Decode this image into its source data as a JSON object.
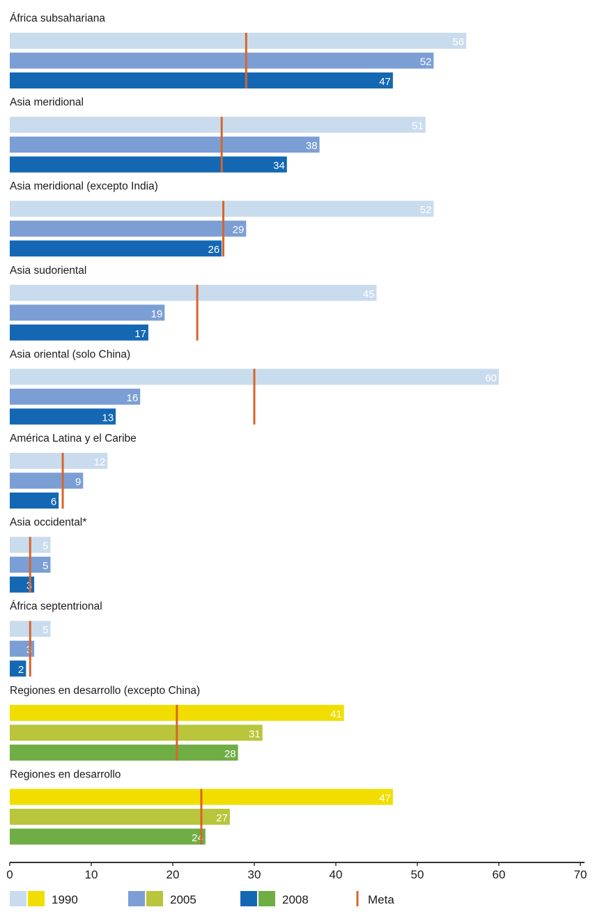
{
  "chart_data": {
    "type": "bar",
    "orientation": "horizontal",
    "title": "",
    "xlabel": "",
    "ylabel": "",
    "xlim": [
      0,
      70
    ],
    "xticks": [
      "0",
      "10",
      "20",
      "30",
      "40",
      "50",
      "60",
      "70"
    ],
    "grid": false,
    "legend_placement": "bottom",
    "series_years": [
      "1990",
      "2005",
      "2008"
    ],
    "target_label": "Meta",
    "groups": [
      {
        "label": "África subsahariana",
        "palette": "blue",
        "values": [
          56,
          52,
          47
        ],
        "target": 29
      },
      {
        "label": "Asia meridional",
        "palette": "blue",
        "values": [
          51,
          38,
          34
        ],
        "target": 26
      },
      {
        "label": "Asia meridional (excepto India)",
        "palette": "blue",
        "values": [
          52,
          29,
          26
        ],
        "target": 26.2
      },
      {
        "label": "Asia sudoriental",
        "palette": "blue",
        "values": [
          45,
          19,
          17
        ],
        "target": 23
      },
      {
        "label": "Asia oriental (solo China)",
        "palette": "blue",
        "values": [
          60,
          16,
          13
        ],
        "target": 30
      },
      {
        "label": "América Latina y el Caribe",
        "palette": "blue",
        "values": [
          12,
          9,
          6
        ],
        "target": 6.5
      },
      {
        "label": "Asia occidental*",
        "palette": "blue",
        "values": [
          5,
          5,
          3
        ],
        "target": 2.5
      },
      {
        "label": "África septentrional",
        "palette": "blue",
        "values": [
          5,
          3,
          2
        ],
        "target": 2.5
      },
      {
        "label": "Regiones en desarrollo (excepto China)",
        "palette": "green",
        "values": [
          41,
          31,
          28
        ],
        "target": 20.5
      },
      {
        "label": "Regiones en desarrollo",
        "palette": "green",
        "values": [
          47,
          27,
          24
        ],
        "target": 23.5
      }
    ]
  },
  "colors": {
    "blue": [
      "#c9dcee",
      "#7b9fd4",
      "#1468b3"
    ],
    "green": [
      "#f1de00",
      "#b9c53a",
      "#6fad45"
    ],
    "target": "#d9642a",
    "axis": "#333333"
  },
  "legend": {
    "items": [
      {
        "label": "1990",
        "colors": [
          "#c9dcee",
          "#f1de00"
        ]
      },
      {
        "label": "2005",
        "colors": [
          "#7b9fd4",
          "#b9c53a"
        ]
      },
      {
        "label": "2008",
        "colors": [
          "#1468b3",
          "#6fad45"
        ]
      }
    ],
    "target_label": "Meta"
  }
}
